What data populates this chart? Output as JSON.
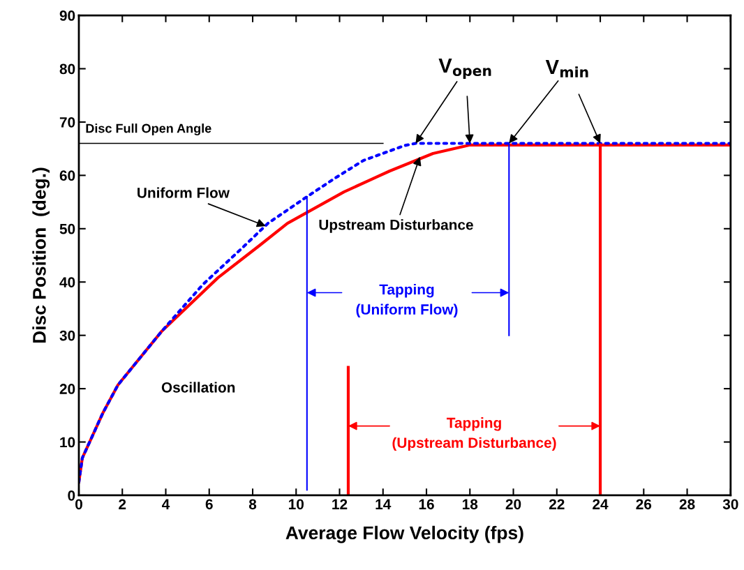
{
  "chart_data": {
    "type": "line",
    "xlabel": "Average Flow Velocity (fps)",
    "ylabel": "Disc Position  (deg.)",
    "xlim": [
      0,
      30
    ],
    "xticks": [
      0,
      2,
      4,
      6,
      8,
      10,
      12,
      14,
      16,
      18,
      20,
      22,
      24,
      26,
      28,
      30
    ],
    "ylim": [
      0,
      90
    ],
    "yticks": [
      0,
      10,
      20,
      30,
      40,
      50,
      60,
      70,
      80,
      90
    ],
    "grid": false,
    "marker": "none",
    "series": [
      {
        "color": "#ff0000",
        "line_style": "solid",
        "x": [
          0,
          0.16,
          1.1,
          1.8,
          3.8,
          6.4,
          8.3,
          9.6,
          12.2,
          14.3,
          16.3,
          17.8,
          18,
          30
        ],
        "values": [
          2.5,
          7,
          15.4,
          20.7,
          30.7,
          40.8,
          46.8,
          51,
          56.9,
          60.8,
          64.1,
          65.5,
          65.7,
          65.7
        ]
      },
      {
        "color": "#0000ff",
        "line_style": "dotted",
        "x": [
          0,
          0.16,
          1.1,
          1.8,
          3.8,
          5.7,
          7.6,
          8.7,
          10.5,
          11.8,
          13.1,
          15,
          15.5,
          30
        ],
        "values": [
          2.5,
          7,
          15.4,
          20.7,
          30.7,
          39.5,
          46.7,
          51,
          56,
          59.5,
          62.8,
          65.6,
          66,
          66
        ]
      },
      {
        "name": "Disc Full Open Angle",
        "color": "#000000",
        "line_style": "solid",
        "x": [
          0,
          14
        ],
        "values": [
          66,
          66
        ]
      },
      {
        "color": "#0000ff",
        "line_style": "solid",
        "x": [
          10.5,
          10.5
        ],
        "values": [
          1,
          56
        ]
      },
      {
        "color": "#0000ff",
        "line_style": "solid",
        "x": [
          19.8,
          19.8
        ],
        "values": [
          30,
          66
        ]
      },
      {
        "color": "#ff0000",
        "line_style": "solid",
        "x": [
          12.4,
          12.4
        ],
        "values": [
          0,
          24
        ]
      },
      {
        "color": "#ff0000",
        "line_style": "solid",
        "x": [
          24,
          24
        ],
        "values": [
          0,
          65.7
        ]
      }
    ],
    "annotations": [
      {
        "text": "V$_{open}$",
        "x": 18,
        "y": 66
      },
      {
        "text": "V$_{min}$",
        "x": 24,
        "y": 66
      },
      {
        "text": "Uniform Flow",
        "x": 8.6,
        "y": 50.5
      },
      {
        "text": "Upstream Disturbance",
        "x": 15.7,
        "y": 63.5
      },
      {
        "text": "Tapping\n(Uniform Flow)",
        "x": 10.5,
        "y": 38
      },
      {
        "text": "Tapping\n(Upstream Disturbance)",
        "x": 12.4,
        "y": 13
      },
      "Oscillation"
    ]
  }
}
